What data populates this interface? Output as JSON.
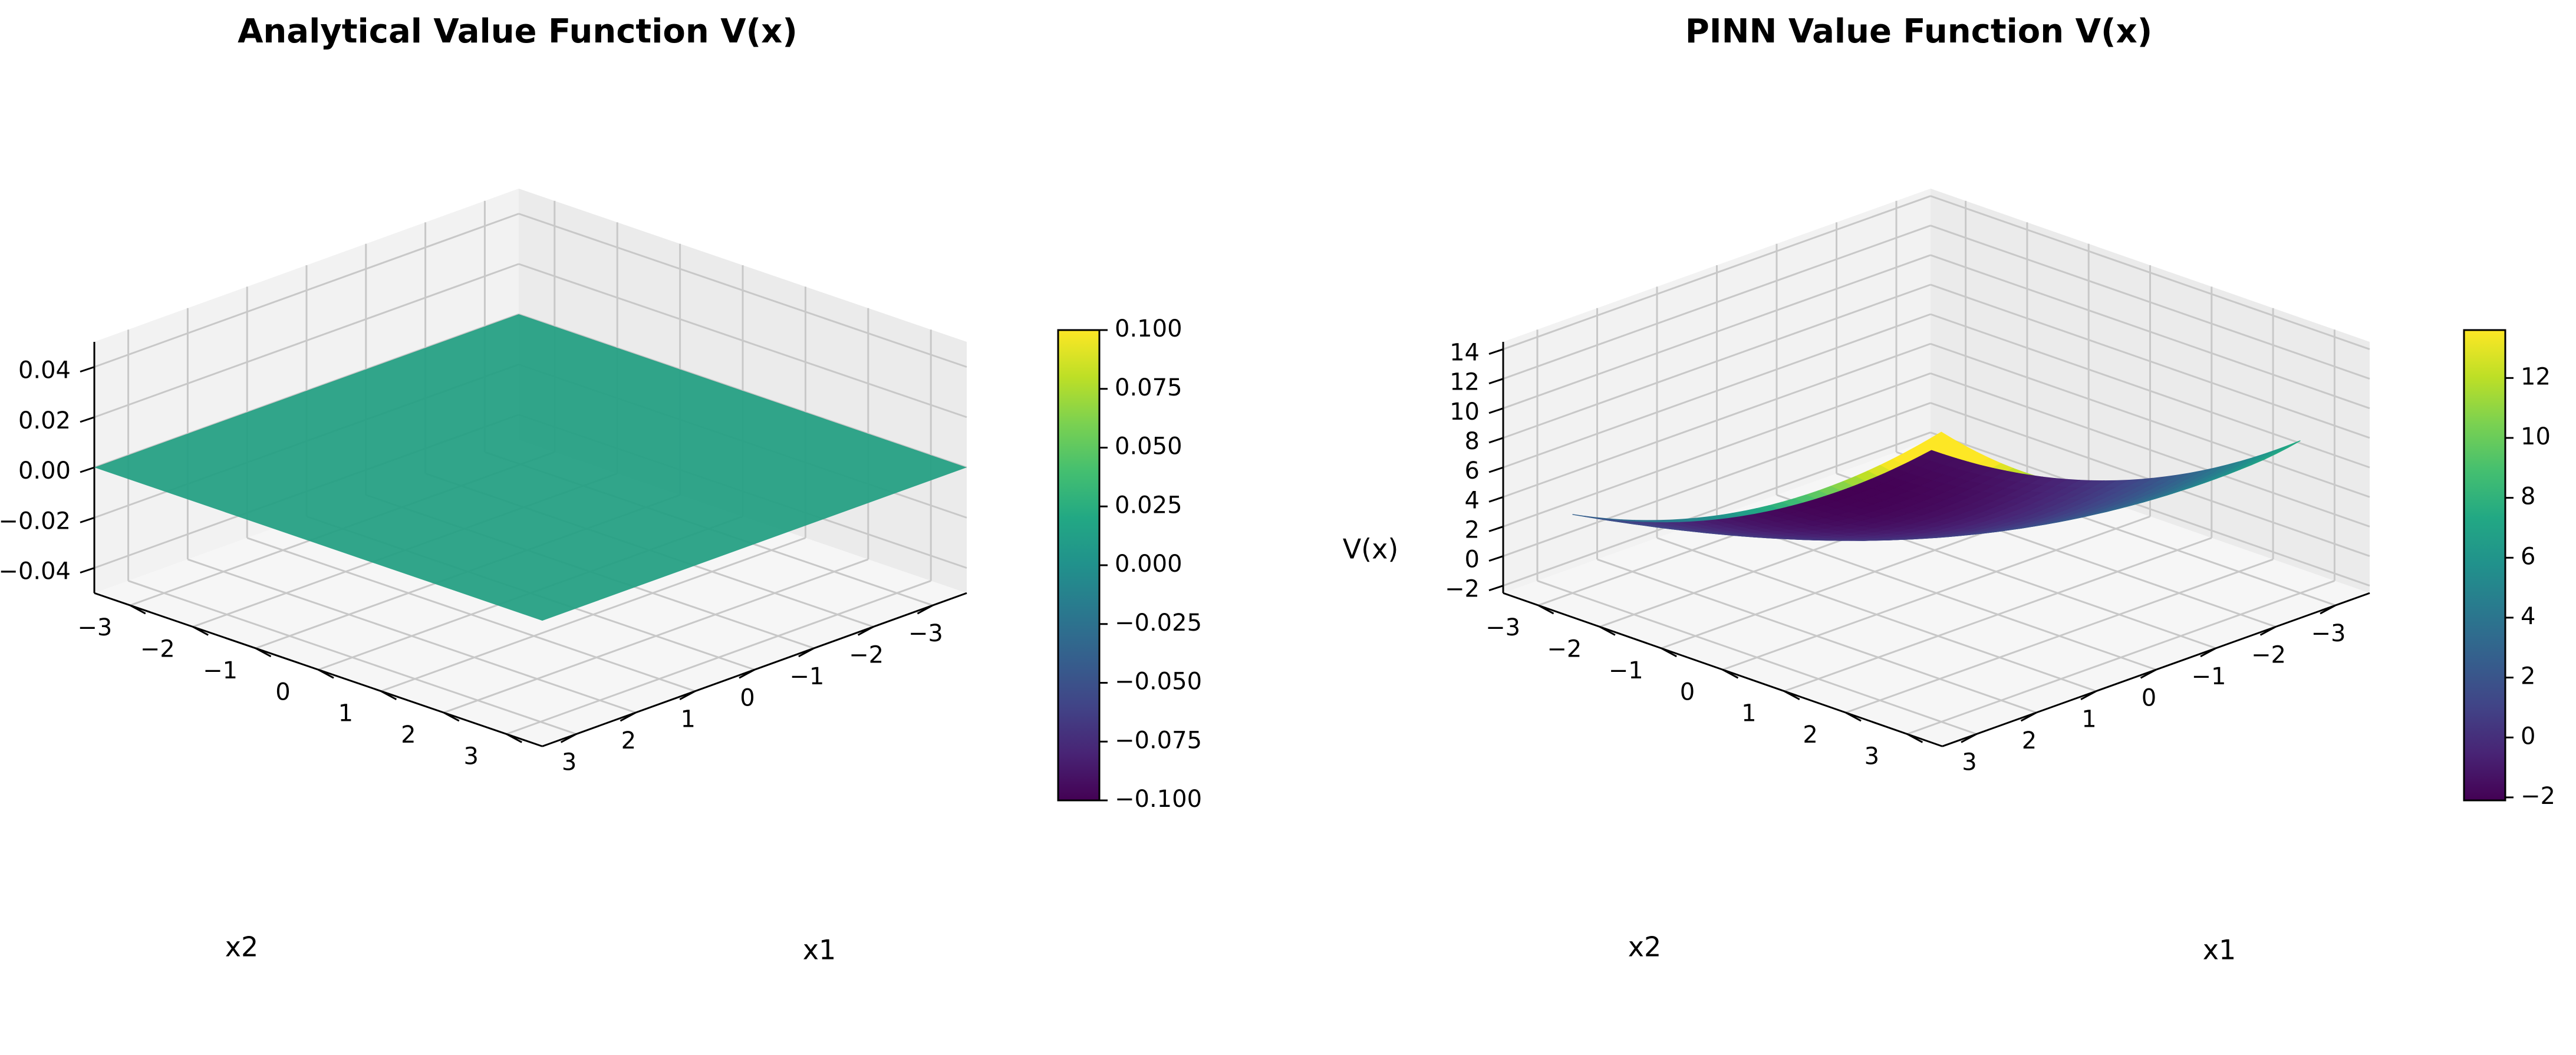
{
  "chart_data": [
    {
      "type": "surface3d",
      "title": "Analytical Value Function V(x)",
      "xlabel": "x1",
      "ylabel": "x2",
      "zlabel": "",
      "xlim": [
        -3,
        3
      ],
      "ylim": [
        -3,
        3
      ],
      "zlim": [
        -0.05,
        0.05
      ],
      "x_ticks": [
        "−3",
        "−2",
        "−1",
        "0",
        "1",
        "2",
        "3"
      ],
      "y_ticks": [
        "−3",
        "−2",
        "−1",
        "0",
        "1",
        "2",
        "3"
      ],
      "z_ticks": [
        "−0.04",
        "−0.02",
        "0.00",
        "0.02",
        "0.04"
      ],
      "surface": {
        "formula": "V(x1,x2) = 0",
        "value": 0
      },
      "colormap": "viridis",
      "colorbar": {
        "range": [
          -0.1,
          0.1
        ],
        "ticks": [
          "−0.100",
          "−0.075",
          "−0.050",
          "−0.025",
          "0.000",
          "0.025",
          "0.050",
          "0.075",
          "0.100"
        ]
      },
      "grid": true
    },
    {
      "type": "surface3d",
      "title": "PINN Value Function V(x)",
      "xlabel": "x1",
      "ylabel": "x2",
      "zlabel": "V(x)",
      "xlim": [
        -3,
        3
      ],
      "ylim": [
        -3,
        3
      ],
      "zlim": [
        -2.5,
        14.5
      ],
      "x_ticks": [
        "−3",
        "−2",
        "−1",
        "0",
        "1",
        "2",
        "3"
      ],
      "y_ticks": [
        "−3",
        "−2",
        "−1",
        "0",
        "1",
        "2",
        "3"
      ],
      "z_ticks": [
        "−2",
        "0",
        "2",
        "4",
        "6",
        "8",
        "10",
        "12",
        "14"
      ],
      "surface": {
        "description": "bowl-shaped surface, min ≈ -2 near x1≈3,x2≈1.5; max ≈ 13.5 at x1=-3,x2=-3",
        "corner_values": {
          "x1=-3,x2=-3": 13.5,
          "x1=3,x2=-3": 6.2,
          "x1=-3,x2=3": 6.4,
          "x1=3,x2=3": 0.5
        },
        "min_value": -2.1,
        "max_value": 13.5
      },
      "colormap": "viridis",
      "colorbar": {
        "range": [
          -2.1,
          13.6
        ],
        "ticks": [
          "−2",
          "0",
          "2",
          "4",
          "6",
          "8",
          "10",
          "12"
        ]
      },
      "grid": true
    }
  ],
  "colors": {
    "pane_left": "#f2f2f2",
    "pane_right": "#ebebeb",
    "pane_floor": "#f6f6f6",
    "grid": "#c8c8c8",
    "flat_surface": "#26a084"
  }
}
